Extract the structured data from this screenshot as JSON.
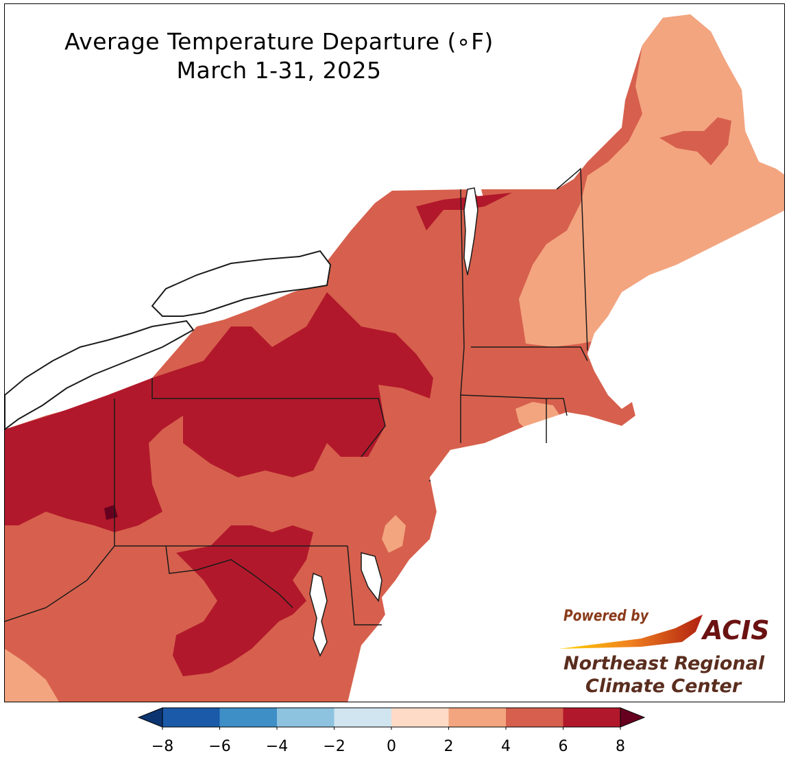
{
  "title": {
    "line1": "Average Temperature Departure (∘F)",
    "line2": "March 1-31, 2025"
  },
  "logo": {
    "powered_by": "Powered by",
    "acis": "ACIS",
    "org_line1": "Northeast Regional",
    "org_line2": "Climate Center"
  },
  "colorbar": {
    "ticks": [
      "−8",
      "−6",
      "−4",
      "−2",
      "0",
      "2",
      "4",
      "6",
      "8"
    ],
    "colors": [
      "#1a5aa8",
      "#3f8fc7",
      "#8ec3e0",
      "#d1e5f0",
      "#fddbc7",
      "#f3a57f",
      "#d6604d",
      "#b2182b"
    ],
    "under_color": "#0c3470",
    "over_color": "#67001f"
  },
  "map_colors": {
    "band_2_4": "#f3a57f",
    "band_4_6": "#d6604d",
    "band_6_8": "#b2182b",
    "band_8_plus": "#67001f",
    "band_0_2": "#fddbc7",
    "water": "#ffffff",
    "border": "#1a1a1a"
  }
}
